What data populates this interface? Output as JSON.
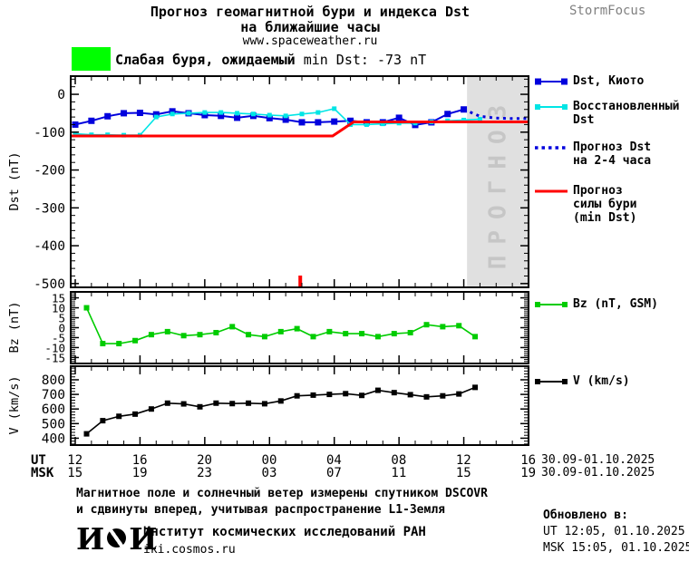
{
  "header": {
    "title_line1": "Прогноз геомагнитной бури и индекса Dst",
    "title_line2": "на ближайшие часы",
    "website": "www.spaceweather.ru",
    "brand": "StormFocus"
  },
  "alert": {
    "level_color": "#00FF00",
    "text_bold": "Слабая буря, ожидаемый",
    "text_value": "min Dst: -73 nT"
  },
  "legend": {
    "kyoto": "Dst, Киото",
    "restored": "Восстановленный\nDst",
    "forecast": "Прогноз Dst\nна 2-4 часа",
    "storm": "Прогноз\nсилы бури\n(min Dst)",
    "bz": "Bz (nT, GSM)",
    "v": "V (km/s)"
  },
  "axis": {
    "ut_label": "UT",
    "msk_label": "MSK",
    "ut_values": [
      "12",
      "16",
      "20",
      "00",
      "04",
      "08",
      "12",
      "16"
    ],
    "msk_values": [
      "15",
      "19",
      "23",
      "03",
      "07",
      "11",
      "15",
      "19"
    ],
    "date_range_ut": "30.09-01.10.2025",
    "date_range_msk": "30.09-01.10.2025"
  },
  "notes": [
    "Магнитное поле и солнечный ветер измерены спутником DSCOVR",
    "и сдвинуты вперед, учитывая распространение L1-Земля"
  ],
  "footer": {
    "logo_first": "И",
    "logo_last": "И",
    "institute": "Институт космических исследований РАН",
    "website": "iki.cosmos.ru",
    "updated_label": "Обновлено в:",
    "updated_ut": "UT  12:05, 01.10.2025",
    "updated_msk": "MSK 15:05, 01.10.2025"
  },
  "colors": {
    "kyoto_blue": "#0000DD",
    "restored_cyan": "#00E5E5",
    "forecast_blue": "#0000DD",
    "storm_red": "#FF0000",
    "bz_green": "#00CC00",
    "v_black": "#000000",
    "alert_green": "#00FF00",
    "forecast_region_gray": "#E0E0E0",
    "forecast_region_text": "#C6C6C6",
    "brand_gray": "#808080"
  },
  "chart_data": [
    {
      "type": "line",
      "panel": "dst",
      "ylabel": "Dst (nT)",
      "x_axis_note": "hours UT from 30.09.2025 12:00 to 01.10.2025 16:00, major ticks every 4 h",
      "xlim": [
        12,
        40
      ],
      "ylim": [
        -510,
        48
      ],
      "yticks": [
        0,
        -100,
        -200,
        -300,
        -400,
        -500
      ],
      "forecast_region": {
        "x_from": 36.2,
        "x_to": 40,
        "label": "ПРОГНОЗ",
        "fill": "#E0E0E0",
        "label_color": "#C6C6C6"
      },
      "event_marker_x": 25.9,
      "series": [
        {
          "name": "Dst, Киото",
          "color": "#0000DD",
          "style": "squares",
          "marker": 7,
          "x_start": 12,
          "x_step": 1,
          "values": [
            -80,
            -70,
            -58,
            -50,
            -49,
            -53,
            -45,
            -50,
            -55,
            -57,
            -62,
            -57,
            -63,
            -67,
            -74,
            -74,
            -72,
            -70,
            -74,
            -74,
            -62,
            -81,
            -74,
            -52,
            -40
          ]
        },
        {
          "name": "Восстановленный Dst",
          "color": "#00E5E5",
          "style": "squares",
          "marker": 5,
          "x_start": 12,
          "x_step": 1,
          "values": [
            -104,
            -107,
            -107,
            -108,
            -108,
            -60,
            -52,
            -50,
            -48,
            -48,
            -50,
            -52,
            -55,
            -57,
            -52,
            -48,
            -38,
            -80,
            -80,
            -78,
            -76,
            -76,
            -73,
            -70,
            -68,
            -66
          ]
        },
        {
          "name": "Прогноз Dst на 2-4 часа",
          "color": "#0000DD",
          "style": "dotted",
          "x_start": 36,
          "x_step": 1,
          "values": [
            -40,
            -58,
            -63,
            -64,
            -64
          ]
        },
        {
          "name": "Прогноз силы бури (min Dst)",
          "color": "#FF0000",
          "style": "line",
          "points": [
            [
              11.7,
              -110
            ],
            [
              27.9,
              -110
            ],
            [
              29.2,
              -73
            ],
            [
              40,
              -73
            ]
          ]
        }
      ]
    },
    {
      "type": "line",
      "panel": "bz",
      "ylabel": "Bz (nT)",
      "xlim": [
        12,
        40
      ],
      "ylim": [
        -18,
        18
      ],
      "yticks": [
        15,
        10,
        5,
        0,
        -5,
        -10,
        -15
      ],
      "series": [
        {
          "name": "Bz (nT, GSM)",
          "color": "#00CC00",
          "style": "squares",
          "marker": 6,
          "x_start": 12.7,
          "x_step": 1,
          "values": [
            10,
            -8,
            -8,
            -6.5,
            -3.5,
            -2,
            -4,
            -3.5,
            -2.5,
            0.5,
            -3.5,
            -4.5,
            -2,
            -0.5,
            -4.5,
            -2,
            -3,
            -3,
            -4.5,
            -3,
            -2.5,
            1.5,
            0.5,
            1,
            -4.5
          ]
        }
      ]
    },
    {
      "type": "line",
      "panel": "v",
      "ylabel": "V (km/s)",
      "xlim": [
        12,
        40
      ],
      "ylim": [
        353,
        893
      ],
      "yticks": [
        800,
        700,
        600,
        500,
        400
      ],
      "series": [
        {
          "name": "V (km/s)",
          "color": "#000000",
          "style": "squares",
          "marker": 6,
          "x_start": 12.7,
          "x_step": 1,
          "values": [
            430,
            520,
            550,
            565,
            600,
            640,
            635,
            615,
            640,
            637,
            640,
            636,
            655,
            690,
            695,
            700,
            705,
            693,
            728,
            712,
            698,
            683,
            690,
            703,
            748
          ]
        }
      ]
    }
  ]
}
